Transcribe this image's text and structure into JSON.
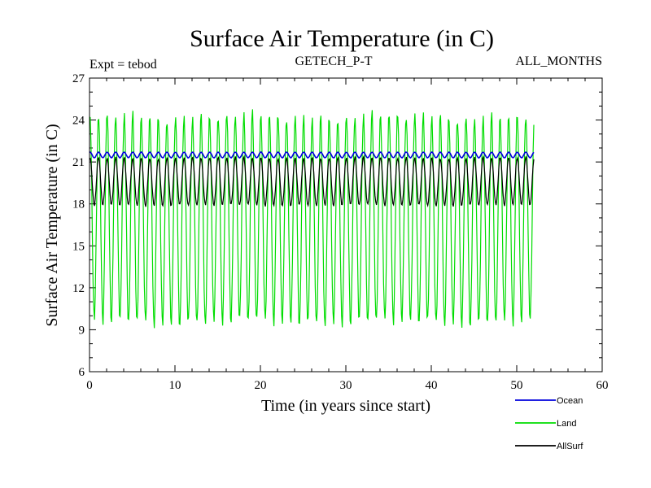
{
  "chart_data": {
    "type": "line",
    "title": "Surface Air Temperature (in C)",
    "subtitle_left": "Expt = tebod",
    "subtitle_center": "GETECH_P-T",
    "subtitle_right": "ALL_MONTHS",
    "xlabel": "Time (in years since start)",
    "ylabel": "Surface Air Temperature (in C)",
    "xlim": [
      0,
      60
    ],
    "ylim": [
      6,
      27
    ],
    "xticks": [
      0,
      10,
      20,
      30,
      40,
      50,
      60
    ],
    "yticks": [
      6,
      9,
      12,
      15,
      18,
      21,
      24,
      27
    ],
    "x_start": 0,
    "x_end": 52,
    "steps_per_year": 12,
    "series": [
      {
        "name": "Ocean",
        "color": "#0000dd",
        "mean": 21.5,
        "amplitude": 0.2,
        "annual_max_approx": 21.8,
        "annual_min_approx": 21.1
      },
      {
        "name": "Land",
        "color": "#00dd00",
        "mean": 16.9,
        "amplitude": 7.4,
        "annual_max_approx": 24.5,
        "annual_min_approx": 9.5
      },
      {
        "name": "AllSurf",
        "color": "#000000",
        "mean": 19.6,
        "amplitude": 1.7,
        "annual_max_approx": 21.4,
        "annual_min_approx": 17.9
      }
    ]
  }
}
